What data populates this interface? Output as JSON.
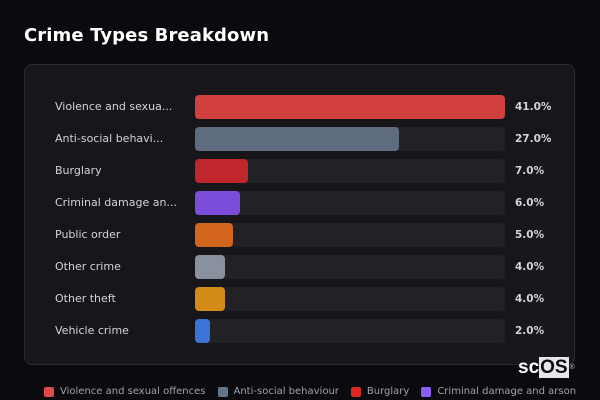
{
  "header": {
    "title": "Crime Types Breakdown"
  },
  "rows": [
    {
      "label": "Violence and sexua...",
      "value": "41.0%",
      "pct": 41.0,
      "color": "#d13f3f"
    },
    {
      "label": "Anti-social behavi...",
      "value": "27.0%",
      "pct": 27.0,
      "color": "#5f6b7e"
    },
    {
      "label": "Burglary",
      "value": "7.0%",
      "pct": 7.0,
      "color": "#c0272d"
    },
    {
      "label": "Criminal damage an...",
      "value": "6.0%",
      "pct": 6.0,
      "color": "#7c4ddb"
    },
    {
      "label": "Public order",
      "value": "5.0%",
      "pct": 5.0,
      "color": "#d3661d"
    },
    {
      "label": "Other crime",
      "value": "4.0%",
      "pct": 4.0,
      "color": "#8a919e"
    },
    {
      "label": "Other theft",
      "value": "4.0%",
      "pct": 4.0,
      "color": "#d48a17"
    },
    {
      "label": "Vehicle crime",
      "value": "2.0%",
      "pct": 2.0,
      "color": "#3b74d6"
    }
  ],
  "legend": [
    {
      "label": "Violence and sexual offences",
      "color": "#e0474c"
    },
    {
      "label": "Anti-social behaviour",
      "color": "#64748b"
    },
    {
      "label": "Burglary",
      "color": "#dc2626"
    },
    {
      "label": "Criminal damage and arson",
      "color": "#8b5cf6"
    }
  ],
  "watermark": {
    "prefix": "sc",
    "highlight": "OS",
    "mark": "®"
  },
  "chart_data": {
    "type": "bar",
    "orientation": "horizontal",
    "title": "Crime Types Breakdown",
    "categories": [
      "Violence and sexual offences",
      "Anti-social behaviour",
      "Burglary",
      "Criminal damage and arson",
      "Public order",
      "Other crime",
      "Other theft",
      "Vehicle crime"
    ],
    "display_labels": [
      "Violence and sexua...",
      "Anti-social behavi...",
      "Burglary",
      "Criminal damage an...",
      "Public order",
      "Other crime",
      "Other theft",
      "Vehicle crime"
    ],
    "values": [
      41.0,
      27.0,
      7.0,
      6.0,
      5.0,
      4.0,
      4.0,
      2.0
    ],
    "value_labels": [
      "41.0%",
      "27.0%",
      "7.0%",
      "6.0%",
      "5.0%",
      "4.0%",
      "4.0%",
      "2.0%"
    ],
    "colors": [
      "#d13f3f",
      "#5f6b7e",
      "#c0272d",
      "#7c4ddb",
      "#d3661d",
      "#8a919e",
      "#d48a17",
      "#3b74d6"
    ],
    "unit": "%",
    "xlim": [
      0,
      41
    ],
    "grid": false,
    "legend_position": "bottom",
    "legend_entries_visible": [
      "Violence and sexual offences",
      "Anti-social behaviour",
      "Burglary",
      "Criminal damage and arson"
    ]
  }
}
